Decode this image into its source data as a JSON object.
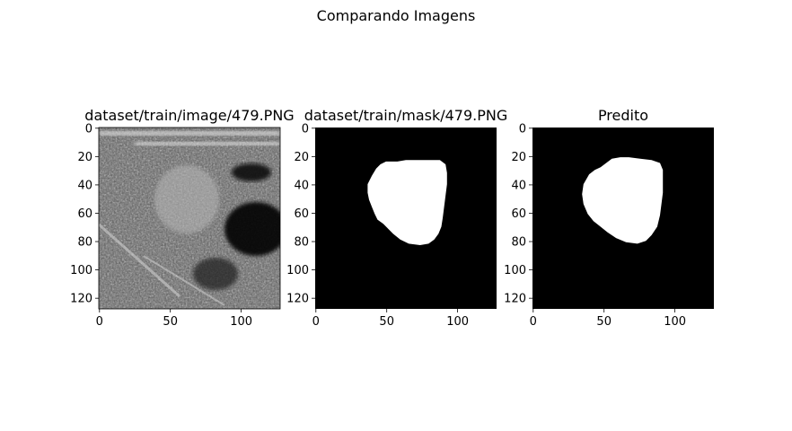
{
  "figure": {
    "suptitle": "Comparando Imagens"
  },
  "chart_data": [
    {
      "type": "image",
      "title": "dataset/train/image/479.PNG",
      "colormap": "gray",
      "image_size": [
        128,
        128
      ],
      "xticks": [
        0,
        50,
        100
      ],
      "yticks": [
        0,
        20,
        40,
        60,
        80,
        100,
        120
      ],
      "content": "grayscale ultrasound scan"
    },
    {
      "type": "image",
      "title": "dataset/train/mask/479.PNG",
      "colormap": "gray",
      "image_size": [
        128,
        128
      ],
      "xticks": [
        0,
        50,
        100
      ],
      "yticks": [
        0,
        20,
        40,
        60,
        80,
        100,
        120
      ],
      "mask_polygon": [
        [
          46,
          26
        ],
        [
          50,
          24
        ],
        [
          58,
          24
        ],
        [
          64,
          23
        ],
        [
          72,
          23
        ],
        [
          80,
          23
        ],
        [
          88,
          23
        ],
        [
          92,
          26
        ],
        [
          93,
          32
        ],
        [
          93,
          40
        ],
        [
          92,
          48
        ],
        [
          91,
          56
        ],
        [
          90,
          64
        ],
        [
          89,
          70
        ],
        [
          87,
          75
        ],
        [
          84,
          79
        ],
        [
          80,
          82
        ],
        [
          74,
          83
        ],
        [
          66,
          82
        ],
        [
          60,
          79
        ],
        [
          55,
          75
        ],
        [
          52,
          72
        ],
        [
          48,
          68
        ],
        [
          44,
          65
        ],
        [
          42,
          61
        ],
        [
          40,
          56
        ],
        [
          38,
          51
        ],
        [
          37,
          46
        ],
        [
          37,
          40
        ],
        [
          40,
          34
        ],
        [
          43,
          29
        ]
      ]
    },
    {
      "type": "image",
      "title": "Predito",
      "colormap": "gray",
      "image_size": [
        128,
        128
      ],
      "xticks": [
        0,
        50,
        100
      ],
      "yticks": [
        0,
        20,
        40,
        60,
        80,
        100,
        120
      ],
      "mask_polygon": [
        [
          48,
          28
        ],
        [
          52,
          25
        ],
        [
          56,
          22
        ],
        [
          62,
          21
        ],
        [
          68,
          21
        ],
        [
          76,
          22
        ],
        [
          84,
          23
        ],
        [
          90,
          25
        ],
        [
          92,
          30
        ],
        [
          92,
          38
        ],
        [
          92,
          46
        ],
        [
          91,
          54
        ],
        [
          90,
          62
        ],
        [
          88,
          70
        ],
        [
          84,
          76
        ],
        [
          80,
          80
        ],
        [
          74,
          82
        ],
        [
          66,
          81
        ],
        [
          59,
          78
        ],
        [
          53,
          74
        ],
        [
          48,
          70
        ],
        [
          43,
          66
        ],
        [
          39,
          61
        ],
        [
          36,
          54
        ],
        [
          35,
          47
        ],
        [
          36,
          40
        ],
        [
          40,
          33
        ],
        [
          44,
          30
        ]
      ]
    }
  ]
}
